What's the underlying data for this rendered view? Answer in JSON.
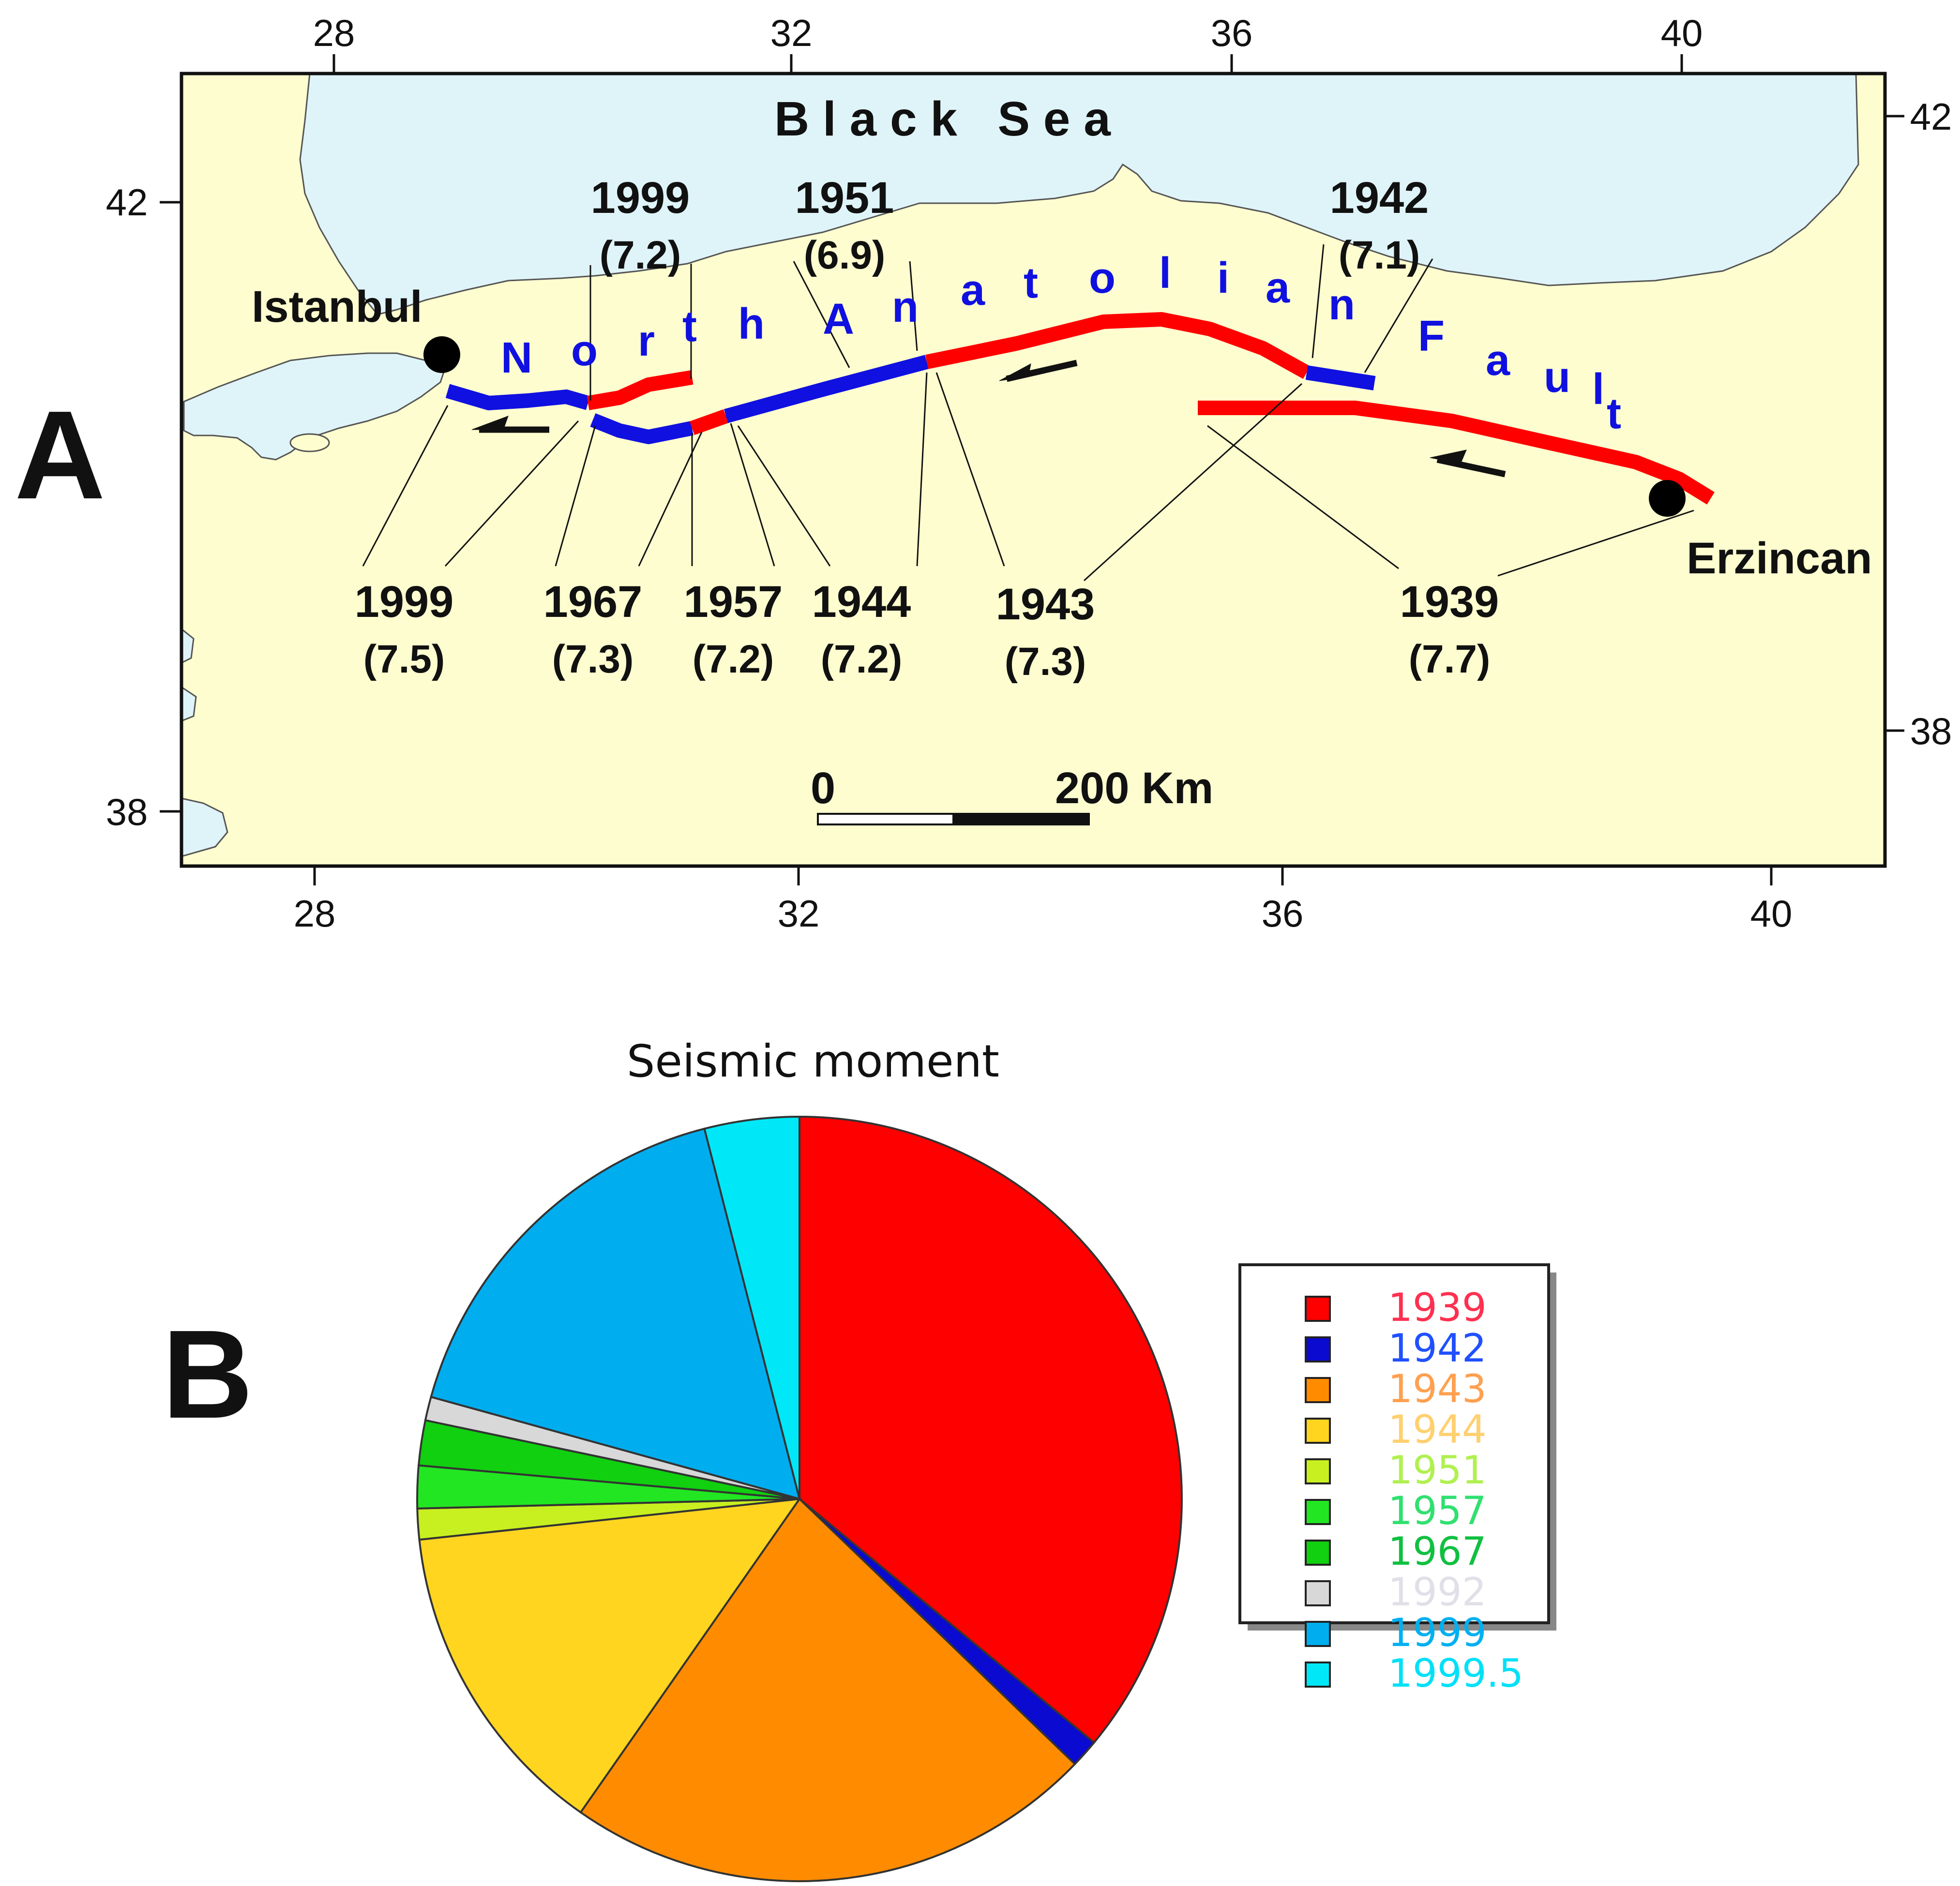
{
  "panel_a": {
    "panel_label": "A",
    "sea_label": "B l a c k   S e a",
    "fault_name_letters": [
      "N",
      "o",
      "r",
      "t",
      "h",
      "A",
      "n",
      "a",
      "t",
      "o",
      "l",
      "i",
      "a",
      "n",
      "F",
      "a",
      "u",
      "l",
      "t"
    ],
    "cities": [
      {
        "name": "Istanbul"
      },
      {
        "name": "Erzincan"
      }
    ],
    "lon_ticks_top": [
      "28",
      "32",
      "36",
      "40"
    ],
    "lon_ticks_bottom": [
      "28",
      "32",
      "36",
      "40"
    ],
    "lat_ticks_left": [
      "42",
      "38"
    ],
    "lat_ticks_right": [
      "42",
      "38"
    ],
    "scale_bar": {
      "start": "0",
      "end": "200 Km"
    },
    "earthquakes_top": [
      {
        "year": "1999",
        "magnitude": "(7.2)"
      },
      {
        "year": "1951",
        "magnitude": "(6.9)"
      },
      {
        "year": "1942",
        "magnitude": "(7.1)"
      }
    ],
    "earthquakes_bottom": [
      {
        "year": "1999",
        "magnitude": "(7.5)"
      },
      {
        "year": "1967",
        "magnitude": "(7.3)"
      },
      {
        "year": "1957",
        "magnitude": "(7.2)"
      },
      {
        "year": "1944",
        "magnitude": "(7.2)"
      },
      {
        "year": "1943",
        "magnitude": "(7.3)"
      },
      {
        "year": "1939",
        "magnitude": "(7.7)"
      }
    ],
    "colors": {
      "land": "#fdfdcf",
      "sea": "#dff4f8",
      "fault_red": "#ff0000",
      "fault_blue": "#1010e0"
    }
  },
  "panel_b": {
    "panel_label": "B",
    "chart_data": {
      "type": "pie",
      "title": "Seismic moment",
      "categories": [
        "1939",
        "1942",
        "1943",
        "1944",
        "1951",
        "1957",
        "1967",
        "1992",
        "1999",
        "1999.5"
      ],
      "values": [
        36.0,
        1.2,
        22.5,
        13.6,
        1.3,
        1.8,
        1.9,
        1.0,
        16.7,
        4.0
      ],
      "colors": [
        "#ff0000",
        "#0a0ad0",
        "#ff8c00",
        "#ffd520",
        "#c8f020",
        "#22e622",
        "#10d010",
        "#d8d8d8",
        "#00aeef",
        "#00e8f8"
      ],
      "legend_text_colors": [
        "#ff3050",
        "#2050ff",
        "#ffa050",
        "#ffd070",
        "#b0f050",
        "#30e070",
        "#10c040",
        "#e0e0e8",
        "#00b0f0",
        "#00e0f8"
      ],
      "legend_position": "right"
    }
  }
}
